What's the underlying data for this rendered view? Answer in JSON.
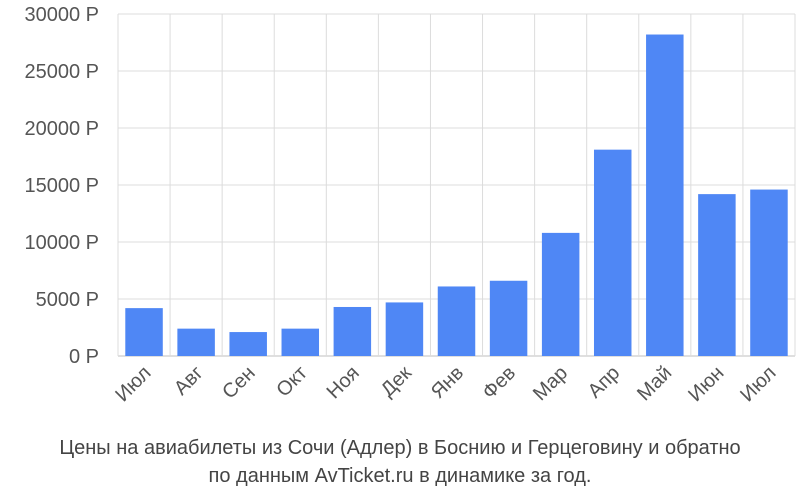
{
  "chart_data": {
    "type": "bar",
    "categories": [
      "Июл",
      "Авг",
      "Сен",
      "Окт",
      "Ноя",
      "Дек",
      "Янв",
      "Фев",
      "Мар",
      "Апр",
      "Май",
      "Июн",
      "Июл"
    ],
    "values": [
      4200,
      2400,
      2100,
      2400,
      4300,
      4700,
      6100,
      6600,
      10800,
      18100,
      28200,
      14200,
      14600
    ],
    "ylim": [
      0,
      30000
    ],
    "yticks": [
      0,
      5000,
      10000,
      15000,
      20000,
      25000,
      30000
    ],
    "ytick_labels": [
      "0 Р",
      "5000 Р",
      "10000 Р",
      "15000 Р",
      "20000 Р",
      "25000 Р",
      "30000 Р"
    ],
    "grid": true,
    "bar_color": "#4f87f5",
    "xlabel": "",
    "ylabel": ""
  },
  "caption": {
    "line1": "Цены на авиабилеты из Сочи (Адлер) в Боснию и Герцеговину и обратно",
    "line2": "по данным AvTicket.ru в динамике за год."
  }
}
